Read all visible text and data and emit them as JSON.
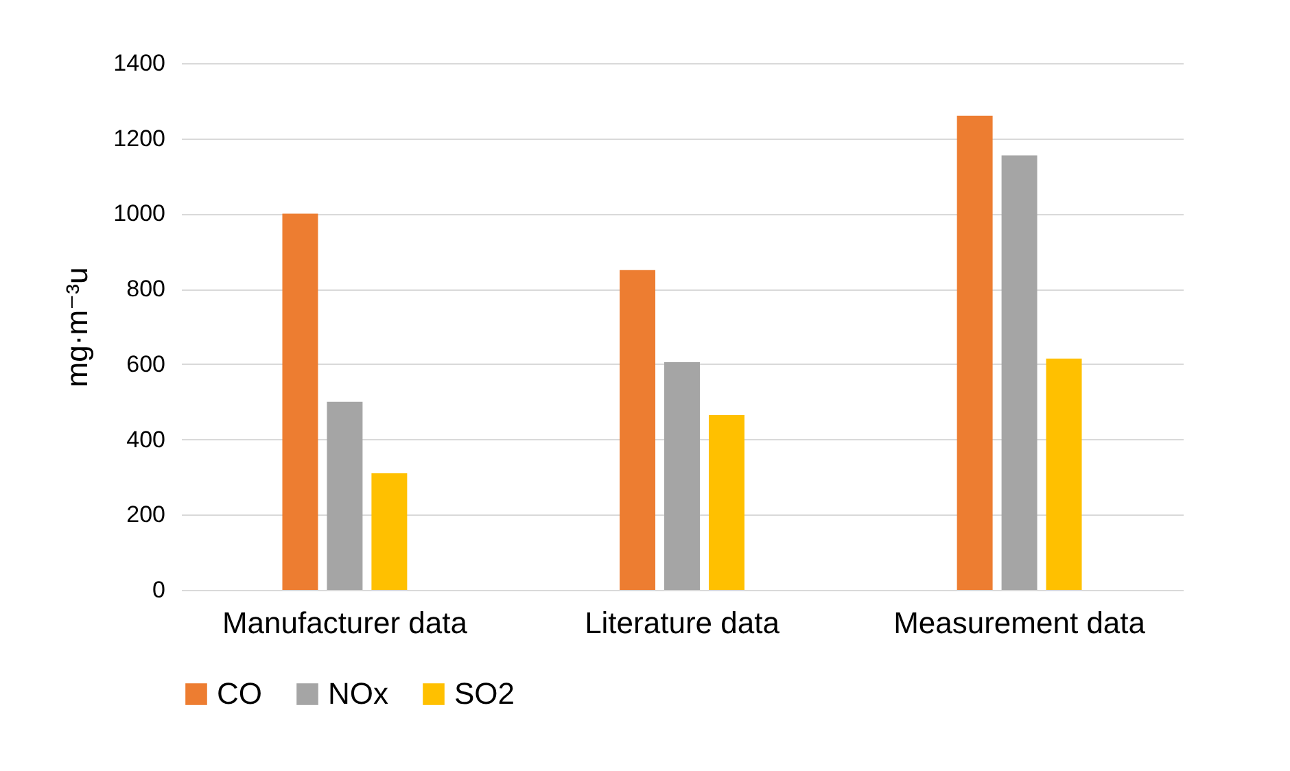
{
  "chart_data": {
    "type": "bar",
    "ylabel": "mg·m⁻³u",
    "categories": [
      "Manufacturer data",
      "Literature data",
      "Measurement data"
    ],
    "series": [
      {
        "name": "CO",
        "color": "#ed7d31",
        "values": [
          1000,
          850,
          1260
        ]
      },
      {
        "name": "NOx",
        "color": "#a5a5a5",
        "values": [
          500,
          605,
          1155
        ]
      },
      {
        "name": "SO2",
        "color": "#ffc000",
        "values": [
          310,
          465,
          615
        ]
      }
    ],
    "ylim": [
      0,
      1400
    ],
    "yticks": [
      0,
      200,
      400,
      600,
      800,
      1000,
      1200,
      1400
    ],
    "grid": "y",
    "legend": "bottom"
  }
}
